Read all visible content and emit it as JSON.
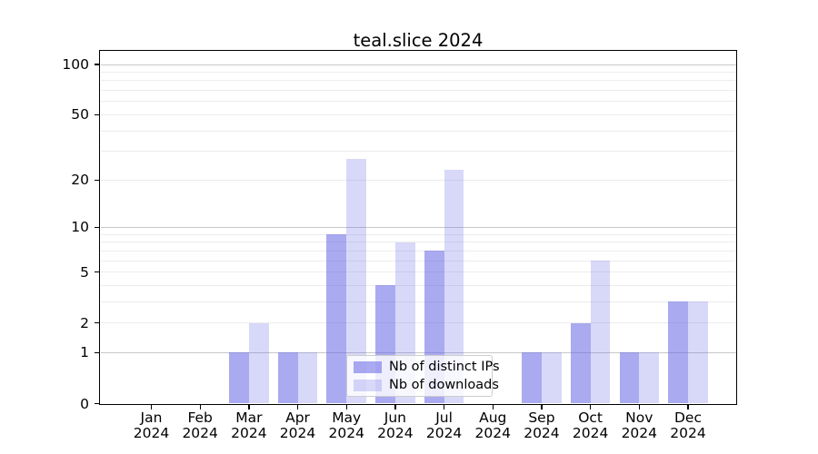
{
  "chart_data": {
    "type": "bar",
    "title": "teal.slice 2024",
    "categories": [
      "Jan 2024",
      "Feb 2024",
      "Mar 2024",
      "Apr 2024",
      "May 2024",
      "Jun 2024",
      "Jul 2024",
      "Aug 2024",
      "Sep 2024",
      "Oct 2024",
      "Nov 2024",
      "Dec 2024"
    ],
    "series": [
      {
        "name": "Nb of distinct IPs",
        "color": "rgba(100,100,230,0.55)",
        "values": [
          0,
          0,
          1,
          1,
          9,
          4,
          7,
          0,
          1,
          2,
          1,
          3
        ]
      },
      {
        "name": "Nb of downloads",
        "color": "rgba(100,100,230,0.25)",
        "values": [
          0,
          0,
          2,
          1,
          27,
          8,
          23,
          0,
          1,
          6,
          1,
          3
        ]
      }
    ],
    "xlabel": "",
    "ylabel": "",
    "yscale": "log1p",
    "ylim": [
      0,
      120
    ],
    "yticks": [
      0,
      1,
      2,
      5,
      10,
      20,
      50,
      100
    ],
    "gridlines": {
      "major": [
        1,
        10,
        100
      ],
      "minor": [
        2,
        3,
        4,
        5,
        6,
        7,
        8,
        9,
        20,
        30,
        40,
        50,
        60,
        70,
        80,
        90
      ]
    },
    "legend_position": "lower center",
    "grid": true
  },
  "colors": {
    "background": "#ffffff",
    "axis": "#000000",
    "grid_major": "#c8c8c8",
    "grid_minor": "#ececec",
    "legend_border": "#cccccc",
    "legend_background": "rgba(255,255,255,0.8)",
    "text": "#000000"
  }
}
